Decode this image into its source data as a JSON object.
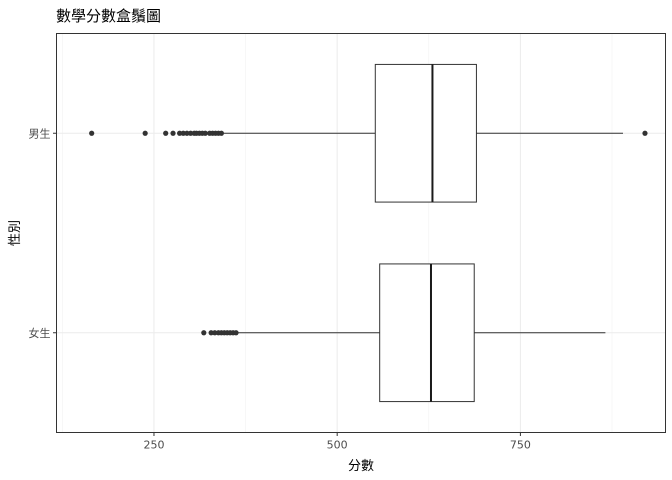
{
  "chart_data": {
    "type": "boxplot",
    "title": "數學分數盒鬚圖",
    "xlabel": "分數",
    "ylabel": "性別",
    "xlim": [
      117,
      948
    ],
    "x_ticks": [
      250,
      500,
      750
    ],
    "x_tick_labels": [
      "250",
      "500",
      "750"
    ],
    "categories": [
      "男生",
      "女生"
    ],
    "grid": true,
    "theme": "bw",
    "colors": {
      "box_line": "#333333",
      "box_fill": "#ffffff",
      "median": "#1a1a1a",
      "outlier": "#333333",
      "grid": "#ebebeb"
    },
    "boxes": [
      {
        "category": "男生",
        "whisker_low": 345,
        "q1": 552,
        "median": 630,
        "q3": 690,
        "whisker_high": 890,
        "outliers": [
          165,
          238,
          266,
          276,
          285,
          290,
          295,
          300,
          305,
          308,
          312,
          316,
          320,
          326,
          330,
          334,
          338,
          342,
          920
        ]
      },
      {
        "category": "女生",
        "whisker_low": 365,
        "q1": 558,
        "median": 628,
        "q3": 687,
        "whisker_high": 866,
        "outliers": [
          318,
          328,
          333,
          338,
          342,
          346,
          350,
          354,
          358,
          362
        ]
      }
    ]
  }
}
